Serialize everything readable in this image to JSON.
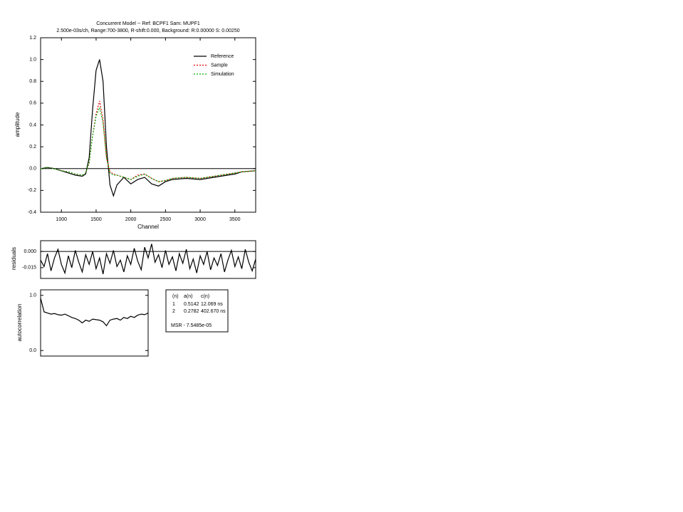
{
  "chart_data": [
    {
      "type": "line",
      "title": "Concurrent Model --  Ref: BCPF1       Sam: MUPF1",
      "subtitle": "2.500e-03s/ch, Range:700-3800, R-shift:0.000, Background: R:0.00000 S: 0.00250",
      "x_label": "Channel",
      "y_label": "amplitude",
      "x": [
        700,
        800,
        900,
        1000,
        1100,
        1200,
        1300,
        1350,
        1400,
        1450,
        1500,
        1550,
        1600,
        1650,
        1700,
        1750,
        1800,
        1900,
        2000,
        2100,
        2200,
        2300,
        2400,
        2500,
        2600,
        2800,
        3000,
        3200,
        3400,
        3500,
        3600,
        3800
      ],
      "series": [
        {
          "name": "Reference",
          "color": "#000000",
          "line_style": "solid",
          "values": [
            0,
            0.01,
            0,
            -0.02,
            -0.04,
            -0.06,
            -0.07,
            -0.05,
            0.1,
            0.55,
            0.9,
            1.0,
            0.8,
            0.2,
            -0.15,
            -0.25,
            -0.15,
            -0.08,
            -0.14,
            -0.1,
            -0.08,
            -0.14,
            -0.16,
            -0.12,
            -0.1,
            -0.09,
            -0.1,
            -0.08,
            -0.06,
            -0.05,
            -0.03,
            -0.02
          ]
        },
        {
          "name": "Sample",
          "color": "#e00000",
          "line_style": "dotted",
          "values": [
            0,
            0.01,
            0,
            -0.02,
            -0.03,
            -0.05,
            -0.06,
            -0.04,
            0.05,
            0.3,
            0.5,
            0.62,
            0.45,
            0.1,
            -0.03,
            -0.05,
            -0.06,
            -0.08,
            -0.1,
            -0.06,
            -0.05,
            -0.09,
            -0.12,
            -0.11,
            -0.09,
            -0.08,
            -0.09,
            -0.07,
            -0.05,
            -0.04,
            -0.03,
            -0.02
          ]
        },
        {
          "name": "Simulation",
          "color": "#00b000",
          "line_style": "dotted",
          "values": [
            0,
            0.01,
            0,
            -0.02,
            -0.03,
            -0.05,
            -0.06,
            -0.04,
            0.06,
            0.3,
            0.48,
            0.56,
            0.42,
            0.1,
            -0.04,
            -0.06,
            -0.06,
            -0.08,
            -0.1,
            -0.07,
            -0.05,
            -0.09,
            -0.12,
            -0.11,
            -0.09,
            -0.08,
            -0.09,
            -0.07,
            -0.05,
            -0.04,
            -0.03,
            -0.02
          ]
        }
      ],
      "xlim": [
        700,
        3800
      ],
      "xticks": [
        1000,
        1500,
        2000,
        2500,
        3000,
        3500
      ],
      "ylim": [
        -0.4,
        1.2
      ],
      "yticks": [
        -0.4,
        -0.2,
        {
          "value": 0,
          "label": "0.0"
        },
        0.2,
        0.4,
        0.6,
        0.8,
        {
          "value": 1,
          "label": "1.0"
        },
        1.2
      ],
      "zero_line": true,
      "legend": "upper right"
    },
    {
      "type": "line",
      "y_label": "residuals",
      "color": "#000000",
      "x": [
        700,
        750,
        800,
        850,
        900,
        950,
        1000,
        1050,
        1100,
        1150,
        1200,
        1250,
        1300,
        1350,
        1400,
        1450,
        1500,
        1550,
        1600,
        1650,
        1700,
        1750,
        1800,
        1850,
        1900,
        1950,
        2000,
        2050,
        2100,
        2150,
        2200,
        2250,
        2300,
        2350,
        2400,
        2450,
        2500,
        2550,
        2600,
        2650,
        2700,
        2750,
        2800,
        2850,
        2900,
        2950,
        3000,
        3050,
        3100,
        3150,
        3200,
        3250,
        3300,
        3350,
        3400,
        3450,
        3500,
        3550,
        3600,
        3650,
        3700,
        3750,
        3800
      ],
      "values": [
        -0.008,
        -0.014,
        -0.002,
        -0.018,
        -0.006,
        0.002,
        -0.012,
        -0.02,
        -0.004,
        -0.015,
        0.001,
        -0.01,
        -0.019,
        -0.003,
        -0.012,
        0.0,
        -0.016,
        -0.006,
        -0.021,
        -0.002,
        -0.011,
        0.001,
        -0.014,
        -0.008,
        -0.019,
        -0.004,
        -0.012,
        0.003,
        -0.009,
        -0.017,
        0.004,
        -0.006,
        0.007,
        -0.01,
        -0.003,
        -0.015,
        0.001,
        -0.012,
        -0.005,
        -0.018,
        -0.002,
        -0.011,
        0.002,
        -0.016,
        -0.007,
        -0.02,
        -0.004,
        -0.012,
        0.0,
        -0.017,
        -0.006,
        -0.013,
        -0.002,
        -0.019,
        -0.008,
        0.001,
        -0.014,
        -0.005,
        -0.016,
        0.002,
        -0.01,
        -0.018,
        -0.007
      ],
      "xlim": [
        700,
        3800
      ],
      "ylim": [
        -0.025,
        0.01
      ],
      "yticks": [
        -0.015,
        {
          "value": 0,
          "label": "0.000"
        }
      ],
      "zero_line": true
    },
    {
      "type": "line",
      "y_label": "autocorrelation",
      "color": "#000000",
      "values": [
        0.95,
        0.7,
        0.68,
        0.66,
        0.67,
        0.65,
        0.64,
        0.66,
        0.63,
        0.6,
        0.58,
        0.55,
        0.5,
        0.55,
        0.53,
        0.57,
        0.56,
        0.55,
        0.52,
        0.45,
        0.55,
        0.57,
        0.58,
        0.55,
        0.6,
        0.58,
        0.62,
        0.6,
        0.64,
        0.66,
        0.65,
        0.68
      ],
      "ylim": [
        -0.1,
        1.1
      ],
      "yticks": [
        {
          "value": 0,
          "label": "0.0"
        },
        {
          "value": 1,
          "label": "1.0"
        }
      ]
    }
  ],
  "fit_table": {
    "header": [
      "(n)",
      "a(n)",
      "c(n)"
    ],
    "rows": [
      [
        "1",
        "0.5142",
        "12.069 ns"
      ],
      [
        "2",
        "0.2782",
        "402.670 ns"
      ]
    ],
    "msr": "MSR - 7.5485e-05"
  }
}
